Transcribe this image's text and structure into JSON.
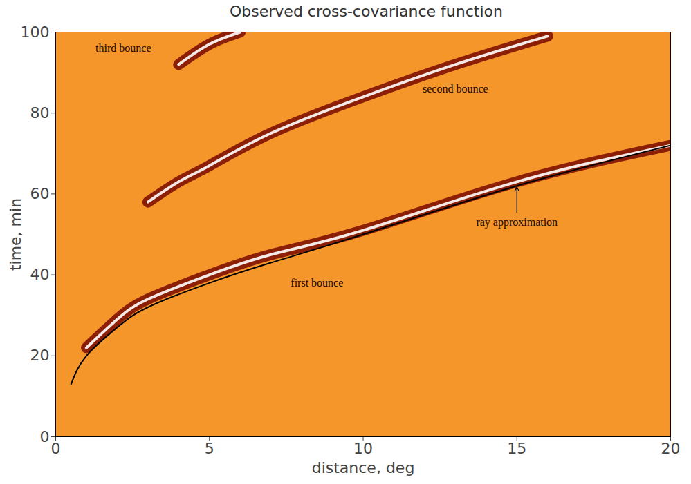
{
  "chart_data": {
    "type": "line",
    "title": "Observed cross-covariance function",
    "x_label": "distance, deg",
    "y_label": "time, min",
    "xlim": [
      0,
      20
    ],
    "ylim": [
      0,
      100
    ],
    "xticks": [
      0,
      5,
      10,
      15,
      20
    ],
    "yticks": [
      0,
      20,
      40,
      60,
      80,
      100
    ],
    "grid": false,
    "series": [
      {
        "name": "first bounce",
        "color": "#7a0a00",
        "x": [
          1,
          2,
          3,
          5,
          7,
          10,
          15,
          20
        ],
        "values": [
          22,
          29,
          34,
          40,
          45,
          51,
          63,
          72
        ]
      },
      {
        "name": "second bounce",
        "color": "#7a0a00",
        "x": [
          3,
          4,
          5,
          7,
          10,
          13,
          16
        ],
        "values": [
          58,
          63,
          67,
          75,
          84,
          92,
          99
        ]
      },
      {
        "name": "third bounce",
        "color": "#7a0a00",
        "x": [
          4,
          5,
          6
        ],
        "values": [
          92,
          97,
          100
        ]
      },
      {
        "name": "ray approximation",
        "color": "#000000",
        "x": [
          0.5,
          1,
          2,
          3,
          5,
          7,
          10,
          15,
          20
        ],
        "values": [
          13,
          20,
          27,
          32,
          38,
          43,
          50,
          62,
          72
        ]
      }
    ],
    "annotations": [
      {
        "text": "third bounce",
        "x": 2.2,
        "y": 96
      },
      {
        "text": "second bounce",
        "x": 13,
        "y": 86
      },
      {
        "text": "first bounce",
        "x": 8.5,
        "y": 38
      },
      {
        "text": "ray approximation",
        "x": 15,
        "y": 53
      }
    ]
  }
}
